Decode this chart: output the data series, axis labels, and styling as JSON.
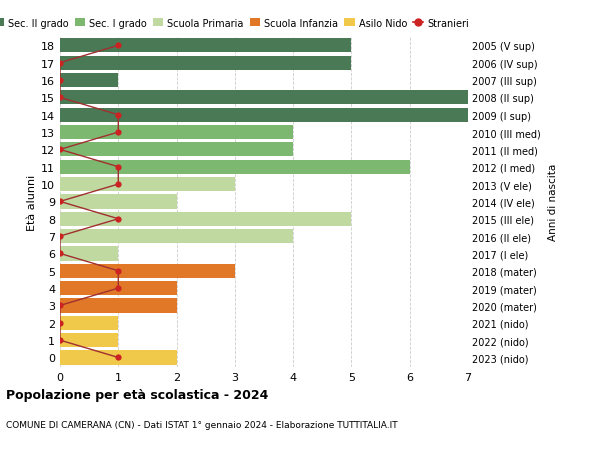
{
  "ages": [
    18,
    17,
    16,
    15,
    14,
    13,
    12,
    11,
    10,
    9,
    8,
    7,
    6,
    5,
    4,
    3,
    2,
    1,
    0
  ],
  "years": [
    "2005 (V sup)",
    "2006 (IV sup)",
    "2007 (III sup)",
    "2008 (II sup)",
    "2009 (I sup)",
    "2010 (III med)",
    "2011 (II med)",
    "2012 (I med)",
    "2013 (V ele)",
    "2014 (IV ele)",
    "2015 (III ele)",
    "2016 (II ele)",
    "2017 (I ele)",
    "2018 (mater)",
    "2019 (mater)",
    "2020 (mater)",
    "2021 (nido)",
    "2022 (nido)",
    "2023 (nido)"
  ],
  "bar_values": [
    5,
    5,
    1,
    7,
    7,
    4,
    4,
    6,
    3,
    2,
    5,
    4,
    1,
    3,
    2,
    2,
    1,
    1,
    2
  ],
  "bar_colors": [
    "#4a7a55",
    "#4a7a55",
    "#4a7a55",
    "#4a7a55",
    "#4a7a55",
    "#7db870",
    "#7db870",
    "#7db870",
    "#c0d9a0",
    "#c0d9a0",
    "#c0d9a0",
    "#c0d9a0",
    "#c0d9a0",
    "#e07828",
    "#e07828",
    "#e07828",
    "#f0c84a",
    "#f0c84a",
    "#f0c84a"
  ],
  "stranieri_x": [
    1,
    0,
    0,
    0,
    1,
    1,
    0,
    1,
    1,
    0,
    1,
    0,
    0,
    1,
    1,
    0,
    0,
    0,
    1
  ],
  "legend_labels": [
    "Sec. II grado",
    "Sec. I grado",
    "Scuola Primaria",
    "Scuola Infanzia",
    "Asilo Nido",
    "Stranieri"
  ],
  "legend_colors": [
    "#4a7a55",
    "#7db870",
    "#c0d9a0",
    "#e07828",
    "#f0c84a",
    "#cc2222"
  ],
  "title_bold": "Popolazione per età scolastica - 2024",
  "subtitle": "COMUNE DI CAMERANA (CN) - Dati ISTAT 1° gennaio 2024 - Elaborazione TUTTITALIA.IT",
  "ylabel_left": "Età alunni",
  "ylabel_right": "Anni di nascita",
  "xlim": [
    0,
    7
  ],
  "xticks": [
    0,
    1,
    2,
    3,
    4,
    5,
    6,
    7
  ],
  "ylim_min": -0.55,
  "ylim_max": 18.55,
  "background_color": "#ffffff"
}
